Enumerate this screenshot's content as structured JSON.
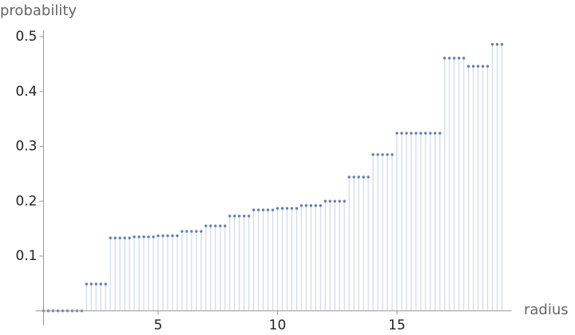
{
  "chart_data": {
    "type": "discrete",
    "x_label": "radius",
    "y_label": "probability",
    "x": [
      0.2,
      0.4,
      0.6,
      0.8,
      1,
      1.2,
      1.4,
      1.6,
      1.8,
      2,
      2.2,
      2.4,
      2.6,
      2.8,
      3,
      3.2,
      3.4,
      3.6,
      3.8,
      4,
      4.2,
      4.4,
      4.6,
      4.8,
      5,
      5.2,
      5.4,
      5.6,
      5.8,
      6,
      6.2,
      6.4,
      6.6,
      6.8,
      7,
      7.2,
      7.4,
      7.6,
      7.8,
      8,
      8.2,
      8.4,
      8.6,
      8.8,
      9,
      9.2,
      9.4,
      9.6,
      9.8,
      10,
      10.2,
      10.4,
      10.6,
      10.8,
      11,
      11.2,
      11.4,
      11.6,
      11.8,
      12,
      12.2,
      12.4,
      12.6,
      12.8,
      13,
      13.2,
      13.4,
      13.6,
      13.8,
      14,
      14.2,
      14.4,
      14.6,
      14.8,
      15,
      15.2,
      15.4,
      15.6,
      15.8,
      16,
      16.2,
      16.4,
      16.6,
      16.8,
      17,
      17.2,
      17.4,
      17.6,
      17.8,
      18,
      18.2,
      18.4,
      18.6,
      18.8,
      19,
      19.2,
      19.4
    ],
    "values": [
      0,
      0,
      0,
      0,
      0,
      0,
      0,
      0,
      0,
      0.049,
      0.049,
      0.049,
      0.049,
      0.049,
      0.133,
      0.133,
      0.133,
      0.133,
      0.133,
      0.135,
      0.135,
      0.135,
      0.135,
      0.135,
      0.137,
      0.137,
      0.137,
      0.137,
      0.137,
      0.145,
      0.145,
      0.145,
      0.145,
      0.145,
      0.155,
      0.155,
      0.155,
      0.155,
      0.155,
      0.173,
      0.173,
      0.173,
      0.173,
      0.173,
      0.184,
      0.184,
      0.184,
      0.184,
      0.184,
      0.187,
      0.187,
      0.187,
      0.187,
      0.187,
      0.192,
      0.192,
      0.192,
      0.192,
      0.192,
      0.2,
      0.2,
      0.2,
      0.2,
      0.2,
      0.244,
      0.244,
      0.244,
      0.244,
      0.244,
      0.285,
      0.285,
      0.285,
      0.285,
      0.285,
      0.324,
      0.324,
      0.324,
      0.324,
      0.324,
      0.324,
      0.324,
      0.324,
      0.324,
      0.324,
      0.461,
      0.461,
      0.461,
      0.461,
      0.461,
      0.446,
      0.446,
      0.446,
      0.446,
      0.446,
      0.486,
      0.486,
      0.486
    ],
    "color": "#5e81b5",
    "stem_color": "#d3dcea",
    "xlim": [
      0.2,
      19.8
    ],
    "ylim": [
      0,
      0.52
    ],
    "xticks": [
      5,
      10,
      15
    ],
    "yticks": [
      0.1,
      0.2,
      0.3,
      0.4,
      0.5
    ]
  }
}
